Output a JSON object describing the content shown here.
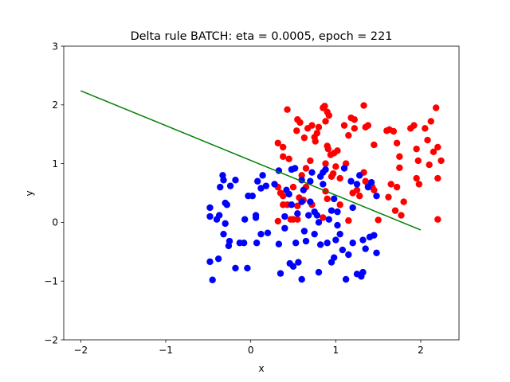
{
  "chart_data": {
    "type": "scatter",
    "title": "Delta rule BATCH: eta = 0.0005, epoch = 221",
    "xlabel": "x",
    "ylabel": "y",
    "xlim": [
      -2.2,
      2.45
    ],
    "ylim": [
      -2,
      3
    ],
    "xticks": [
      -2,
      -1,
      0,
      1,
      2
    ],
    "yticks": [
      -2,
      -1,
      0,
      1,
      2,
      3
    ],
    "grid": false,
    "legend": "none",
    "series": [
      {
        "color": "#ff0000",
        "points": [
          [
            0.43,
            1.92
          ],
          [
            0.55,
            1.75
          ],
          [
            0.58,
            1.7
          ],
          [
            0.54,
            1.56
          ],
          [
            0.63,
            1.44
          ],
          [
            0.67,
            1.6
          ],
          [
            0.72,
            1.65
          ],
          [
            0.75,
            1.45
          ],
          [
            0.76,
            1.38
          ],
          [
            0.78,
            1.52
          ],
          [
            0.8,
            1.62
          ],
          [
            0.85,
            1.95
          ],
          [
            0.87,
            1.98
          ],
          [
            0.9,
            1.88
          ],
          [
            0.92,
            1.82
          ],
          [
            0.88,
            1.72
          ],
          [
            0.9,
            1.3
          ],
          [
            0.91,
            1.25
          ],
          [
            0.94,
            1.15
          ],
          [
            0.98,
            1.18
          ],
          [
            1.02,
            1.22
          ],
          [
            1.1,
            1.65
          ],
          [
            1.15,
            1.48
          ],
          [
            1.18,
            1.78
          ],
          [
            1.22,
            1.75
          ],
          [
            1.22,
            1.6
          ],
          [
            1.33,
            1.99
          ],
          [
            1.35,
            1.62
          ],
          [
            1.38,
            1.65
          ],
          [
            1.45,
            1.32
          ],
          [
            1.6,
            1.56
          ],
          [
            1.63,
            1.58
          ],
          [
            1.68,
            1.55
          ],
          [
            1.72,
            1.35
          ],
          [
            1.75,
            1.12
          ],
          [
            1.8,
            0.35
          ],
          [
            1.88,
            1.6
          ],
          [
            1.92,
            1.65
          ],
          [
            1.95,
            1.25
          ],
          [
            1.97,
            1.05
          ],
          [
            2.05,
            1.6
          ],
          [
            2.08,
            1.4
          ],
          [
            2.12,
            1.72
          ],
          [
            2.15,
            1.2
          ],
          [
            2.18,
            1.95
          ],
          [
            2.2,
            1.28
          ],
          [
            2.1,
            0.98
          ],
          [
            2.2,
            0.75
          ],
          [
            2.24,
            1.05
          ],
          [
            2.2,
            0.05
          ],
          [
            1.95,
            0.75
          ],
          [
            1.98,
            0.65
          ],
          [
            1.75,
            0.93
          ],
          [
            1.72,
            0.6
          ],
          [
            1.65,
            0.65
          ],
          [
            1.77,
            0.12
          ],
          [
            1.7,
            0.2
          ],
          [
            1.62,
            0.43
          ],
          [
            1.5,
            0.04
          ],
          [
            1.43,
            0.6
          ],
          [
            1.38,
            0.65
          ],
          [
            1.33,
            0.85
          ],
          [
            1.28,
            0.45
          ],
          [
            1.25,
            0.55
          ],
          [
            1.2,
            0.5
          ],
          [
            1.15,
            0.03
          ],
          [
            1.12,
            1.0
          ],
          [
            1.05,
            0.75
          ],
          [
            1.0,
            0.95
          ],
          [
            0.97,
            0.83
          ],
          [
            0.95,
            0.78
          ],
          [
            0.88,
            1.0
          ],
          [
            0.88,
            0.53
          ],
          [
            0.9,
            0.4
          ],
          [
            0.85,
            0.08
          ],
          [
            0.7,
            1.05
          ],
          [
            0.65,
            0.92
          ],
          [
            0.65,
            0.6
          ],
          [
            0.62,
            0.38
          ],
          [
            0.57,
            0.42
          ],
          [
            0.55,
            0.28
          ],
          [
            0.55,
            0.05
          ],
          [
            0.5,
            0.05
          ],
          [
            0.47,
            0.05
          ],
          [
            0.45,
            1.08
          ],
          [
            0.38,
            1.28
          ],
          [
            0.38,
            1.12
          ],
          [
            0.35,
            0.5
          ],
          [
            0.32,
            0.6
          ],
          [
            0.38,
            0.45
          ],
          [
            0.38,
            0.3
          ],
          [
            0.43,
            0.3
          ],
          [
            0.32,
            1.35
          ],
          [
            0.32,
            0.02
          ],
          [
            0.5,
            0.6
          ],
          [
            0.6,
            0.8
          ],
          [
            0.72,
            0.3
          ],
          [
            1.35,
            0.7
          ],
          [
            1.45,
            0.55
          ],
          [
            1.05,
            0.3
          ]
        ]
      },
      {
        "color": "#0000ff",
        "points": [
          [
            -0.48,
            0.25
          ],
          [
            -0.48,
            0.1
          ],
          [
            -0.48,
            -0.67
          ],
          [
            -0.45,
            -0.98
          ],
          [
            -0.4,
            0.05
          ],
          [
            -0.38,
            -0.62
          ],
          [
            -0.37,
            0.12
          ],
          [
            -0.36,
            0.6
          ],
          [
            -0.33,
            0.8
          ],
          [
            -0.32,
            0.72
          ],
          [
            -0.3,
            0.33
          ],
          [
            -0.28,
            0.3
          ],
          [
            -0.3,
            -0.02
          ],
          [
            -0.32,
            -0.2
          ],
          [
            -0.25,
            -0.32
          ],
          [
            -0.26,
            -0.4
          ],
          [
            -0.24,
            0.62
          ],
          [
            -0.18,
            0.72
          ],
          [
            -0.18,
            -0.78
          ],
          [
            -0.13,
            -0.35
          ],
          [
            -0.08,
            -0.35
          ],
          [
            -0.04,
            -0.78
          ],
          [
            -0.03,
            0.45
          ],
          [
            0.02,
            0.45
          ],
          [
            0.06,
            0.12
          ],
          [
            0.06,
            0.08
          ],
          [
            0.07,
            -0.35
          ],
          [
            0.08,
            0.7
          ],
          [
            0.12,
            0.58
          ],
          [
            0.14,
            0.8
          ],
          [
            -0.07,
            0.05
          ],
          [
            0.12,
            -0.2
          ],
          [
            0.2,
            -0.18
          ],
          [
            0.18,
            0.62
          ],
          [
            0.33,
            0.88
          ],
          [
            0.33,
            -0.37
          ],
          [
            0.35,
            -0.87
          ],
          [
            0.4,
            0.1
          ],
          [
            0.4,
            -0.1
          ],
          [
            0.42,
            0.55
          ],
          [
            0.45,
            0.48
          ],
          [
            0.46,
            -0.7
          ],
          [
            0.5,
            -0.75
          ],
          [
            0.48,
            0.3
          ],
          [
            0.48,
            0.9
          ],
          [
            0.53,
            -0.35
          ],
          [
            0.55,
            0.15
          ],
          [
            0.56,
            -0.68
          ],
          [
            0.6,
            0.72
          ],
          [
            0.6,
            0.35
          ],
          [
            0.6,
            -0.97
          ],
          [
            0.62,
            0.55
          ],
          [
            0.63,
            -0.15
          ],
          [
            0.65,
            -0.32
          ],
          [
            0.68,
            0.12
          ],
          [
            0.7,
            0.35
          ],
          [
            0.7,
            0.7
          ],
          [
            0.75,
            -0.2
          ],
          [
            0.75,
            0.18
          ],
          [
            0.78,
            0.12
          ],
          [
            0.8,
            -0.0
          ],
          [
            0.82,
            -0.38
          ],
          [
            0.8,
            -0.85
          ],
          [
            0.82,
            0.78
          ],
          [
            0.85,
            0.85
          ],
          [
            0.88,
            0.9
          ],
          [
            0.85,
            0.65
          ],
          [
            0.9,
            -0.35
          ],
          [
            0.92,
            0.05
          ],
          [
            0.95,
            0.2
          ],
          [
            0.95,
            -0.68
          ],
          [
            0.98,
            -0.6
          ],
          [
            1.0,
            -0.3
          ],
          [
            1.02,
            -0.05
          ],
          [
            1.02,
            0.18
          ],
          [
            1.05,
            -0.2
          ],
          [
            1.08,
            -0.47
          ],
          [
            1.1,
            0.92
          ],
          [
            1.12,
            -0.97
          ],
          [
            1.15,
            -0.55
          ],
          [
            1.18,
            0.7
          ],
          [
            1.2,
            0.25
          ],
          [
            1.2,
            -0.35
          ],
          [
            1.25,
            -0.88
          ],
          [
            1.25,
            0.65
          ],
          [
            1.28,
            0.8
          ],
          [
            1.3,
            -0.92
          ],
          [
            1.32,
            -0.85
          ],
          [
            1.32,
            -0.3
          ],
          [
            1.35,
            -0.45
          ],
          [
            1.38,
            0.6
          ],
          [
            1.4,
            -0.25
          ],
          [
            1.42,
            0.68
          ],
          [
            1.45,
            -0.22
          ],
          [
            1.48,
            0.45
          ],
          [
            1.48,
            -0.52
          ],
          [
            0.98,
            0.4
          ],
          [
            0.72,
            0.85
          ],
          [
            0.52,
            0.92
          ],
          [
            0.28,
            0.65
          ]
        ]
      }
    ],
    "lines": [
      {
        "color": "#008000",
        "x": [
          -2,
          2
        ],
        "y": [
          2.24,
          -0.13
        ]
      }
    ]
  }
}
